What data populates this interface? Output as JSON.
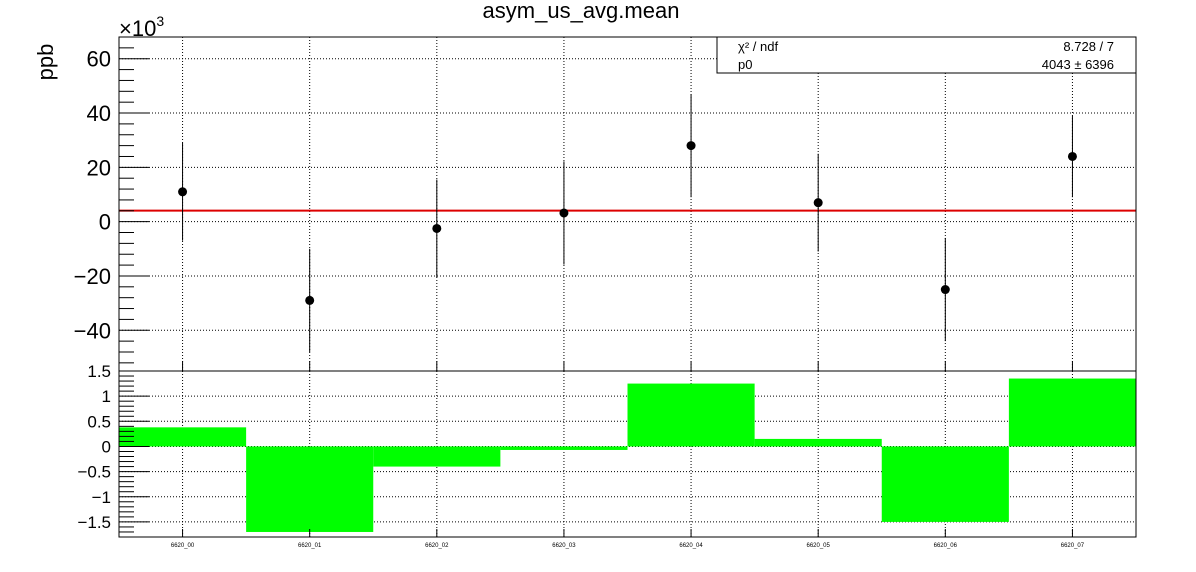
{
  "chart_data": [
    {
      "type": "scatter",
      "title": "asym_us_avg.mean",
      "ylabel": "ppb",
      "y_multiplier": "×10",
      "y_multiplier_exp": "3",
      "ylim": [
        -55,
        68
      ],
      "yticks": [
        "−40",
        "−20",
        "0",
        "20",
        "40",
        "60"
      ],
      "ytick_values": [
        -40,
        -20,
        0,
        20,
        40,
        60
      ],
      "grid": true,
      "categories": [
        "6620_00",
        "6620_01",
        "6620_02",
        "6620_03",
        "6620_04",
        "6620_05",
        "6620_06",
        "6620_07"
      ],
      "series": [
        {
          "values": [
            11,
            -29,
            -2.5,
            3.2,
            28,
            7,
            -25,
            24
          ],
          "errors": [
            18,
            19,
            18,
            19,
            19,
            18,
            19,
            15
          ]
        }
      ],
      "fit_value": 4.043,
      "fit_color": "#dd0000",
      "marker_color": "#000000",
      "stats": {
        "rows": [
          {
            "label": "χ² / ndf",
            "value": "8.728 / 7"
          },
          {
            "label": "p0",
            "value": "4043 ±  6396"
          }
        ]
      }
    },
    {
      "type": "bar",
      "ylim": [
        -1.8,
        1.5
      ],
      "yticks": [
        "−1.5",
        "−1",
        "−0.5",
        "0",
        "0.5",
        "1",
        "1.5"
      ],
      "ytick_values": [
        -1.5,
        -1,
        -0.5,
        0,
        0.5,
        1,
        1.5
      ],
      "grid": true,
      "categories": [
        "6620_00",
        "6620_01",
        "6620_02",
        "6620_03",
        "6620_04",
        "6620_05",
        "6620_06",
        "6620_07"
      ],
      "values": [
        0.38,
        -1.7,
        -0.4,
        -0.07,
        1.25,
        0.15,
        -1.5,
        1.35
      ],
      "bar_color": "#00ff00"
    }
  ]
}
